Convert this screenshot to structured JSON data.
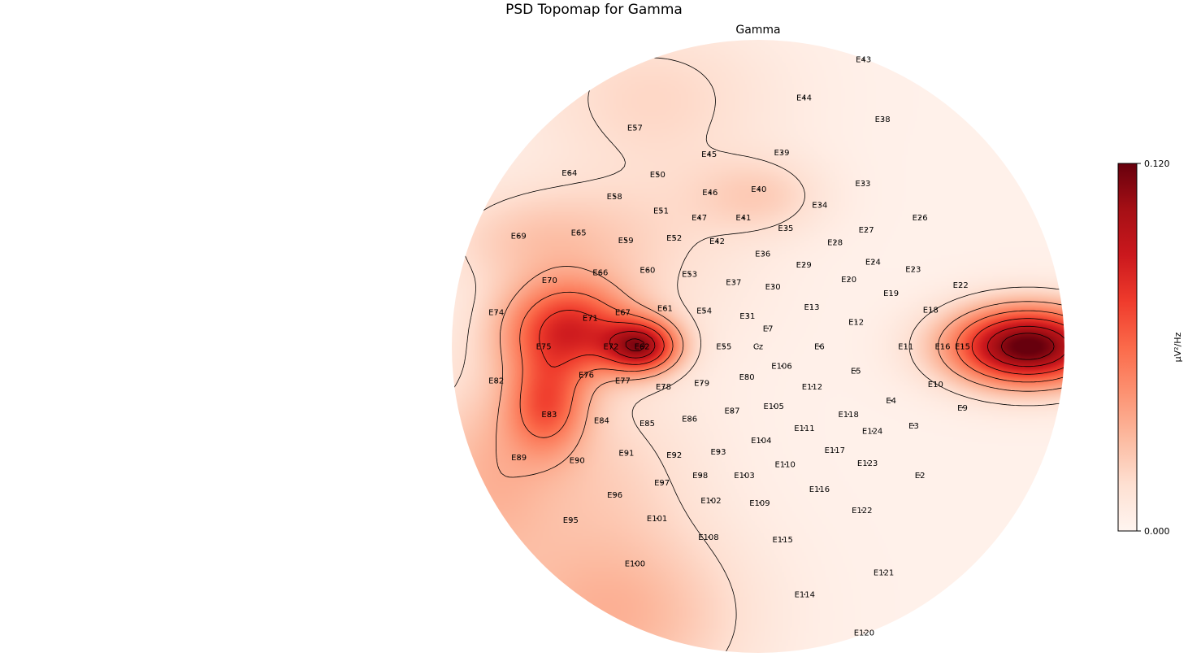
{
  "chart_data": {
    "type": "heatmap",
    "title": "PSD Topomap for Gamma",
    "subtitle": "Gamma",
    "colorbar": {
      "label": "µV²/Hz",
      "min": 0.0,
      "max": 0.12,
      "tick_labels": [
        "0.120",
        "0.000"
      ],
      "colormap": "Reds"
    },
    "sensors": [
      {
        "name": "E43",
        "x": 0.344,
        "y": 0.937
      },
      {
        "name": "E44",
        "x": 0.15,
        "y": 0.812
      },
      {
        "name": "E38",
        "x": 0.406,
        "y": 0.741
      },
      {
        "name": "E57",
        "x": -0.402,
        "y": 0.714
      },
      {
        "name": "E45",
        "x": -0.16,
        "y": 0.627
      },
      {
        "name": "E39",
        "x": 0.077,
        "y": 0.632
      },
      {
        "name": "E64",
        "x": -0.616,
        "y": 0.566
      },
      {
        "name": "E50",
        "x": -0.328,
        "y": 0.561
      },
      {
        "name": "E33",
        "x": 0.342,
        "y": 0.532
      },
      {
        "name": "E58",
        "x": -0.469,
        "y": 0.489
      },
      {
        "name": "E46",
        "x": -0.157,
        "y": 0.502
      },
      {
        "name": "E40",
        "x": 0.002,
        "y": 0.513
      },
      {
        "name": "E34",
        "x": 0.201,
        "y": 0.462
      },
      {
        "name": "E51",
        "x": -0.317,
        "y": 0.443
      },
      {
        "name": "E47",
        "x": -0.192,
        "y": 0.42
      },
      {
        "name": "E41",
        "x": -0.048,
        "y": 0.42
      },
      {
        "name": "E26",
        "x": 0.528,
        "y": 0.42
      },
      {
        "name": "E65",
        "x": -0.586,
        "y": 0.372
      },
      {
        "name": "E69",
        "x": -0.782,
        "y": 0.361
      },
      {
        "name": "E59",
        "x": -0.432,
        "y": 0.346
      },
      {
        "name": "E52",
        "x": -0.274,
        "y": 0.354
      },
      {
        "name": "E42",
        "x": -0.134,
        "y": 0.343
      },
      {
        "name": "E35",
        "x": 0.09,
        "y": 0.386
      },
      {
        "name": "E27",
        "x": 0.353,
        "y": 0.38
      },
      {
        "name": "E28",
        "x": 0.251,
        "y": 0.34
      },
      {
        "name": "E36",
        "x": 0.015,
        "y": 0.303
      },
      {
        "name": "E29",
        "x": 0.149,
        "y": 0.266
      },
      {
        "name": "E24",
        "x": 0.375,
        "y": 0.276
      },
      {
        "name": "E23",
        "x": 0.506,
        "y": 0.252
      },
      {
        "name": "E66",
        "x": -0.515,
        "y": 0.241
      },
      {
        "name": "E60",
        "x": -0.361,
        "y": 0.25
      },
      {
        "name": "E53",
        "x": -0.224,
        "y": 0.236
      },
      {
        "name": "E37",
        "x": -0.08,
        "y": 0.21
      },
      {
        "name": "E30",
        "x": 0.048,
        "y": 0.195
      },
      {
        "name": "E20",
        "x": 0.296,
        "y": 0.219
      },
      {
        "name": "E19",
        "x": 0.434,
        "y": 0.174
      },
      {
        "name": "E22",
        "x": 0.661,
        "y": 0.2
      },
      {
        "name": "E70",
        "x": -0.681,
        "y": 0.216
      },
      {
        "name": "E74",
        "x": -0.855,
        "y": 0.112
      },
      {
        "name": "E71",
        "x": -0.548,
        "y": 0.093
      },
      {
        "name": "E67",
        "x": -0.442,
        "y": 0.112
      },
      {
        "name": "E61",
        "x": -0.304,
        "y": 0.125
      },
      {
        "name": "E54",
        "x": -0.176,
        "y": 0.117
      },
      {
        "name": "E31",
        "x": -0.035,
        "y": 0.099
      },
      {
        "name": "E13",
        "x": 0.175,
        "y": 0.128
      },
      {
        "name": "E12",
        "x": 0.32,
        "y": 0.08
      },
      {
        "name": "E18",
        "x": 0.563,
        "y": 0.12
      },
      {
        "name": "E7",
        "x": 0.032,
        "y": 0.059
      },
      {
        "name": "E75",
        "x": -0.7,
        "y": 0.0
      },
      {
        "name": "E72",
        "x": -0.48,
        "y": 0.0
      },
      {
        "name": "E62",
        "x": -0.379,
        "y": 0.0
      },
      {
        "name": "E55",
        "x": -0.112,
        "y": 0.0
      },
      {
        "name": "Cz",
        "x": 0.0,
        "y": 0.0
      },
      {
        "name": "E6",
        "x": 0.2,
        "y": 0.0
      },
      {
        "name": "E11",
        "x": 0.482,
        "y": 0.0
      },
      {
        "name": "E16",
        "x": 0.602,
        "y": 0.0
      },
      {
        "name": "E15",
        "x": 0.667,
        "y": 0.0
      },
      {
        "name": "E106",
        "x": 0.077,
        "y": -0.064
      },
      {
        "name": "E5",
        "x": 0.319,
        "y": -0.08
      },
      {
        "name": "E80",
        "x": -0.037,
        "y": -0.099
      },
      {
        "name": "E76",
        "x": -0.561,
        "y": -0.093
      },
      {
        "name": "E77",
        "x": -0.442,
        "y": -0.112
      },
      {
        "name": "E78",
        "x": -0.309,
        "y": -0.131
      },
      {
        "name": "E79",
        "x": -0.184,
        "y": -0.12
      },
      {
        "name": "E112",
        "x": 0.176,
        "y": -0.131
      },
      {
        "name": "E10",
        "x": 0.579,
        "y": -0.123
      },
      {
        "name": "E82",
        "x": -0.855,
        "y": -0.112
      },
      {
        "name": "E4",
        "x": 0.434,
        "y": -0.176
      },
      {
        "name": "E9",
        "x": 0.667,
        "y": -0.2
      },
      {
        "name": "E105",
        "x": 0.051,
        "y": -0.195
      },
      {
        "name": "E87",
        "x": -0.085,
        "y": -0.21
      },
      {
        "name": "E118",
        "x": 0.295,
        "y": -0.221
      },
      {
        "name": "E83",
        "x": -0.682,
        "y": -0.221
      },
      {
        "name": "E84",
        "x": -0.511,
        "y": -0.241
      },
      {
        "name": "E85",
        "x": -0.362,
        "y": -0.25
      },
      {
        "name": "E86",
        "x": -0.224,
        "y": -0.236
      },
      {
        "name": "E111",
        "x": 0.151,
        "y": -0.266
      },
      {
        "name": "E124",
        "x": 0.373,
        "y": -0.276
      },
      {
        "name": "E3",
        "x": 0.508,
        "y": -0.258
      },
      {
        "name": "E104",
        "x": 0.01,
        "y": -0.306
      },
      {
        "name": "E93",
        "x": -0.13,
        "y": -0.343
      },
      {
        "name": "E117",
        "x": 0.25,
        "y": -0.338
      },
      {
        "name": "E89",
        "x": -0.781,
        "y": -0.362
      },
      {
        "name": "E90",
        "x": -0.591,
        "y": -0.372
      },
      {
        "name": "E91",
        "x": -0.43,
        "y": -0.348
      },
      {
        "name": "E92",
        "x": -0.274,
        "y": -0.354
      },
      {
        "name": "E110",
        "x": 0.088,
        "y": -0.385
      },
      {
        "name": "E123",
        "x": 0.357,
        "y": -0.38
      },
      {
        "name": "E98",
        "x": -0.189,
        "y": -0.42
      },
      {
        "name": "E103",
        "x": -0.045,
        "y": -0.42
      },
      {
        "name": "E2",
        "x": 0.528,
        "y": -0.42
      },
      {
        "name": "E97",
        "x": -0.314,
        "y": -0.444
      },
      {
        "name": "E116",
        "x": 0.2,
        "y": -0.465
      },
      {
        "name": "E96",
        "x": -0.468,
        "y": -0.484
      },
      {
        "name": "E102",
        "x": -0.154,
        "y": -0.502
      },
      {
        "name": "E109",
        "x": 0.005,
        "y": -0.51
      },
      {
        "name": "E122",
        "x": 0.339,
        "y": -0.534
      },
      {
        "name": "E95",
        "x": -0.612,
        "y": -0.566
      },
      {
        "name": "E101",
        "x": -0.33,
        "y": -0.561
      },
      {
        "name": "E108",
        "x": -0.162,
        "y": -0.622
      },
      {
        "name": "E115",
        "x": 0.08,
        "y": -0.63
      },
      {
        "name": "E100",
        "x": -0.402,
        "y": -0.708
      },
      {
        "name": "E121",
        "x": 0.41,
        "y": -0.738
      },
      {
        "name": "E114",
        "x": 0.152,
        "y": -0.809
      },
      {
        "name": "E120",
        "x": 0.346,
        "y": -0.934
      }
    ],
    "hotspots": [
      {
        "x": 0.88,
        "y": 0.0,
        "value": 0.12,
        "sx": 0.18,
        "sy": 0.09
      },
      {
        "x": -0.38,
        "y": 0.0,
        "value": 0.085,
        "sx": 0.085,
        "sy": 0.06
      },
      {
        "x": -0.62,
        "y": 0.055,
        "value": 0.075,
        "sx": 0.15,
        "sy": 0.11
      },
      {
        "x": -0.69,
        "y": -0.19,
        "value": 0.05,
        "sx": 0.09,
        "sy": 0.11
      },
      {
        "x": -0.48,
        "y": -0.88,
        "value": 0.03,
        "sx": 0.3,
        "sy": 0.22
      },
      {
        "x": -0.72,
        "y": 0.35,
        "value": 0.02,
        "sx": 0.23,
        "sy": 0.12
      },
      {
        "x": 0.01,
        "y": 0.49,
        "value": 0.016,
        "sx": 0.15,
        "sy": 0.09
      },
      {
        "x": -0.35,
        "y": 0.83,
        "value": 0.014,
        "sx": 0.3,
        "sy": 0.18
      },
      {
        "x": -0.33,
        "y": 0.32,
        "value": 0.01,
        "sx": 0.25,
        "sy": 0.25
      },
      {
        "x": -0.56,
        "y": -0.4,
        "value": 0.016,
        "sx": 0.25,
        "sy": 0.2
      },
      {
        "x": -0.9,
        "y": -0.42,
        "value": 0.022,
        "sx": 0.15,
        "sy": 0.25
      }
    ],
    "contour_levels": [
      0.015,
      0.035,
      0.055,
      0.075,
      0.095,
      0.11
    ]
  }
}
